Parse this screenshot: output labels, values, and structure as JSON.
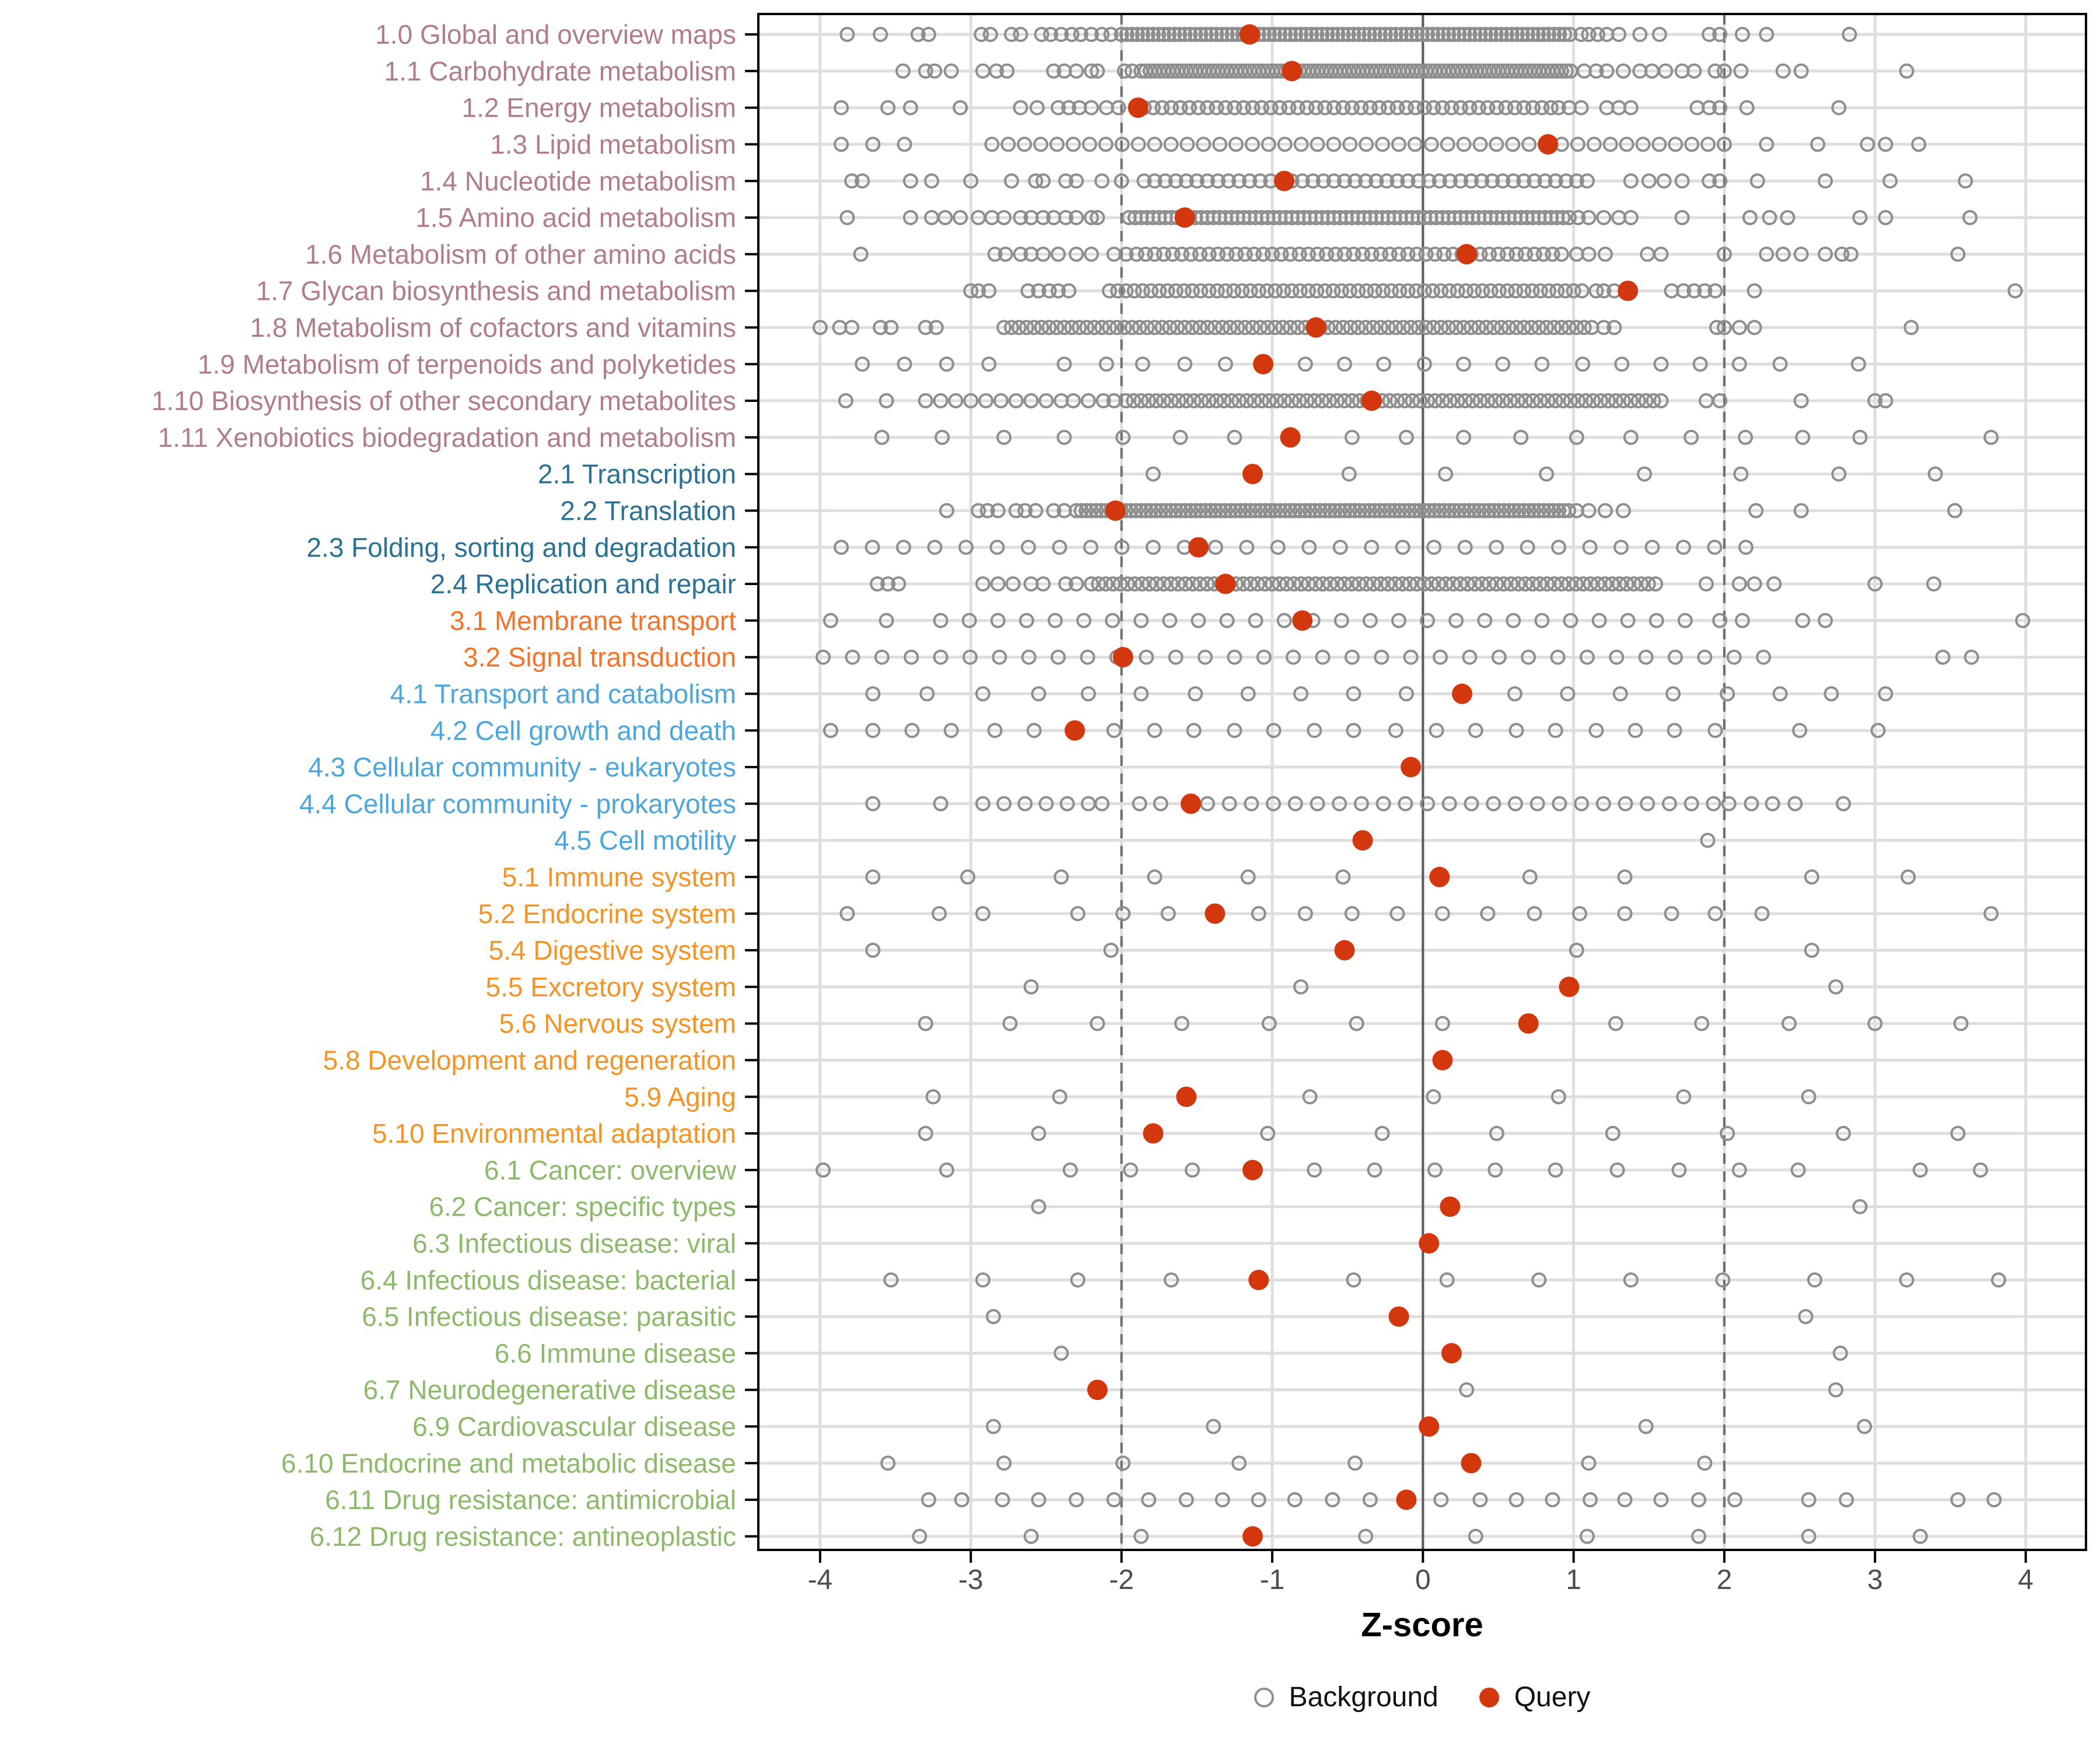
{
  "axis": {
    "xlabel": "Z-score"
  },
  "legend": {
    "background": "Background",
    "query": "Query"
  },
  "chart_data": {
    "type": "scatter",
    "title": "",
    "xlabel": "Z-score",
    "ylabel": "",
    "xlim": [
      -4.41,
      4.4
    ],
    "x_ticks": [
      -4,
      -3,
      -2,
      -1,
      0,
      1,
      2,
      3,
      4
    ],
    "grid": "major-light",
    "reference_lines": {
      "solid": [
        0
      ],
      "dashed": [
        -2,
        2
      ]
    },
    "legend_entries": [
      {
        "label": "Background",
        "marker": "open-circle"
      },
      {
        "label": "Query",
        "marker": "filled-circle"
      }
    ],
    "colors": {
      "query_fill": "#D3370E",
      "background_stroke": "#8E8E8E",
      "grid_light": "#DEDEDE",
      "ref_dashed": "#6E6E6E",
      "ref_solid": "#5C5C5C",
      "panel_border": "#000000",
      "tick_label": "#4D4D4D"
    },
    "group_colors": {
      "metabolism": "#B17D86",
      "genetic": "#2A7194",
      "environmental": "#F87128",
      "cellular": "#4DA6DB",
      "organismal": "#F59425",
      "disease": "#8CBA6A"
    },
    "rows": [
      {
        "label": "1.0 Global and overview maps",
        "group": "metabolism",
        "query": -1.15,
        "bg_points": [
          -3.82,
          -3.6,
          -3.35,
          -3.28,
          -2.93,
          -2.87,
          -2.73,
          -2.67,
          -2.53,
          -2.47,
          -2.4,
          -2.33,
          -2.27,
          -2.2,
          -2.13,
          -2.07,
          1.05,
          1.1,
          1.16,
          1.22,
          1.3,
          1.44,
          1.57,
          1.9,
          1.97,
          2.12,
          2.28,
          2.83
        ],
        "bg_ranges": [
          [
            -2.0,
            0.98,
            0.035
          ]
        ]
      },
      {
        "label": "1.1 Carbohydrate metabolism",
        "group": "metabolism",
        "query": -0.87,
        "bg_points": [
          -3.45,
          -3.3,
          -3.24,
          -3.13,
          -2.92,
          -2.83,
          -2.76,
          -2.45,
          -2.38,
          -2.3,
          -2.2,
          -2.16,
          -1.98,
          -1.93,
          1.07,
          1.15,
          1.22,
          1.33,
          1.44,
          1.52,
          1.61,
          1.72,
          1.8,
          1.94,
          2.0,
          2.11,
          2.39,
          2.51,
          3.21
        ],
        "bg_ranges": [
          [
            -1.87,
            1.0,
            0.03
          ]
        ]
      },
      {
        "label": "1.2 Energy metabolism",
        "group": "metabolism",
        "query": -1.89,
        "bg_points": [
          -3.86,
          -3.55,
          -3.4,
          -3.07,
          -2.67,
          -2.56,
          -2.42,
          -2.35,
          -2.28,
          -2.2,
          -2.1,
          -2.02,
          0.9,
          0.97,
          1.05,
          1.22,
          1.3,
          1.38,
          1.82,
          1.9,
          1.97,
          2.15,
          2.76
        ],
        "bg_ranges": [
          [
            -1.85,
            0.85,
            0.06
          ]
        ]
      },
      {
        "label": "1.3 Lipid metabolism",
        "group": "metabolism",
        "query": 0.83,
        "bg_points": [
          -3.86,
          -3.65,
          -3.44,
          2.28,
          2.62,
          2.95,
          3.07,
          3.29
        ],
        "bg_ranges": [
          [
            -2.86,
            2.0,
            0.108
          ]
        ]
      },
      {
        "label": "1.4 Nucleotide metabolism",
        "group": "metabolism",
        "query": -0.92,
        "bg_points": [
          -3.79,
          -3.72,
          -3.4,
          -3.26,
          -3.0,
          -2.73,
          -2.57,
          -2.52,
          -2.37,
          -2.3,
          -2.13,
          -2.0,
          1.38,
          1.5,
          1.6,
          1.72,
          1.9,
          1.97,
          2.22,
          2.67,
          3.1,
          3.6
        ],
        "bg_ranges": [
          [
            -1.85,
            1.15,
            0.07
          ]
        ]
      },
      {
        "label": "1.5 Amino acid metabolism",
        "group": "metabolism",
        "query": -1.58,
        "bg_points": [
          -3.82,
          -3.4,
          -3.26,
          -3.17,
          -3.07,
          -2.95,
          -2.86,
          -2.78,
          -2.67,
          -2.6,
          -2.52,
          -2.45,
          -2.37,
          -2.3,
          -2.2,
          -2.16,
          1.03,
          1.1,
          1.2,
          1.3,
          1.38,
          1.72,
          2.17,
          2.3,
          2.42,
          2.9,
          3.07,
          3.63
        ],
        "bg_ranges": [
          [
            -1.95,
            0.97,
            0.04
          ]
        ]
      },
      {
        "label": "1.6 Metabolism of other amino acids",
        "group": "metabolism",
        "query": 0.29,
        "bg_points": [
          -3.73,
          -2.84,
          -2.77,
          -2.67,
          -2.6,
          -2.52,
          -2.42,
          -2.3,
          -2.2,
          -2.05,
          -1.97,
          1.02,
          1.1,
          1.21,
          1.49,
          1.58,
          2.0,
          2.28,
          2.39,
          2.51,
          2.67,
          2.78,
          2.84,
          3.55
        ],
        "bg_ranges": [
          [
            -1.9,
            0.95,
            0.06
          ]
        ]
      },
      {
        "label": "1.7 Glycan biosynthesis and metabolism",
        "group": "metabolism",
        "query": 1.36,
        "bg_points": [
          -3.0,
          -2.95,
          -2.88,
          -2.62,
          -2.55,
          -2.48,
          -2.42,
          -2.35,
          1.15,
          1.2,
          1.27,
          1.65,
          1.73,
          1.8,
          1.87,
          1.94,
          2.2,
          3.93
        ],
        "bg_ranges": [
          [
            -2.08,
            1.1,
            0.055
          ]
        ]
      },
      {
        "label": "1.8 Metabolism of cofactors and vitamins",
        "group": "metabolism",
        "query": -0.71,
        "bg_points": [
          -4.0,
          -3.87,
          -3.79,
          -3.6,
          -3.53,
          -3.3,
          -3.23,
          1.2,
          1.27,
          1.95,
          2.0,
          2.1,
          2.2,
          3.24
        ],
        "bg_ranges": [
          [
            -2.78,
            1.15,
            0.05
          ]
        ]
      },
      {
        "label": "1.9 Metabolism of terpenoids and polyketides",
        "group": "metabolism",
        "query": -1.06,
        "bg_points": [
          -3.72,
          -3.44,
          -3.16,
          -2.88,
          -2.38,
          -2.1,
          -1.86,
          -1.58,
          -1.31,
          -0.78,
          -0.52,
          -0.26,
          0.01,
          0.27,
          0.53,
          0.79,
          1.06,
          1.32,
          1.58,
          1.84,
          2.1,
          2.37,
          2.89
        ],
        "bg_ranges": []
      },
      {
        "label": "1.10 Biosynthesis of other secondary metabolites",
        "group": "metabolism",
        "query": -0.34,
        "bg_points": [
          -3.83,
          -3.56,
          -3.3,
          -3.2,
          -3.1,
          -3.0,
          -2.9,
          -2.8,
          -2.7,
          -2.6,
          -2.5,
          -2.4,
          -2.32,
          -2.22,
          -2.12,
          -2.05,
          1.88,
          1.97,
          2.51,
          3.0,
          3.07
        ],
        "bg_ranges": [
          [
            -1.97,
            1.61,
            0.05
          ]
        ]
      },
      {
        "label": "1.11 Xenobiotics biodegradation and metabolism",
        "group": "metabolism",
        "query": -0.88,
        "bg_points": [
          -3.59,
          -3.19,
          -2.78,
          -2.38,
          -1.99,
          -1.61,
          -1.25,
          -0.47,
          -0.11,
          0.27,
          0.65,
          1.02,
          1.38,
          1.78,
          2.14,
          2.52,
          2.9,
          3.77
        ],
        "bg_ranges": []
      },
      {
        "label": "2.1 Transcription",
        "group": "genetic",
        "query": -1.13,
        "bg_points": [
          -1.79,
          -0.49,
          0.15,
          0.82,
          1.47,
          2.11,
          2.76,
          3.4
        ],
        "bg_ranges": []
      },
      {
        "label": "2.2 Translation",
        "group": "genetic",
        "query": -2.04,
        "bg_points": [
          -3.16,
          -2.95,
          -2.89,
          -2.82,
          -2.7,
          -2.64,
          -2.57,
          -2.45,
          -2.38,
          1.02,
          1.1,
          1.21,
          1.33,
          2.21,
          2.51,
          3.53
        ],
        "bg_ranges": [
          [
            -2.3,
            0.97,
            0.033
          ]
        ]
      },
      {
        "label": "2.3 Folding, sorting and degradation",
        "group": "genetic",
        "query": -1.49,
        "bg_points": [],
        "bg_ranges": [
          [
            -3.86,
            2.33,
            0.207
          ]
        ]
      },
      {
        "label": "2.4 Replication and repair",
        "group": "genetic",
        "query": -1.31,
        "bg_points": [
          -3.62,
          -3.55,
          -3.48,
          -2.92,
          -2.82,
          -2.72,
          -2.6,
          -2.52,
          -2.37,
          -2.3,
          1.88,
          2.1,
          2.2,
          2.33,
          3.0,
          3.39
        ],
        "bg_ranges": [
          [
            -2.2,
            1.58,
            0.048
          ]
        ]
      },
      {
        "label": "3.1 Membrane transport",
        "group": "environmental",
        "query": -0.8,
        "bg_points": [
          -3.93,
          -3.56,
          1.97,
          2.12,
          2.52,
          2.67,
          3.98
        ],
        "bg_ranges": [
          [
            -3.2,
            1.9,
            0.19
          ]
        ]
      },
      {
        "label": "3.2 Signal transduction",
        "group": "environmental",
        "query": -1.99,
        "bg_points": [
          3.45,
          3.64
        ],
        "bg_ranges": [
          [
            -3.98,
            2.33,
            0.195
          ]
        ]
      },
      {
        "label": "4.1 Transport and catabolism",
        "group": "cellular",
        "query": 0.26,
        "bg_points": [
          -3.65,
          -3.29,
          -2.92,
          -2.55,
          -2.22,
          -1.87,
          -1.51,
          -1.16,
          -0.81,
          -0.46,
          -0.11,
          0.61,
          0.96,
          1.31,
          1.66,
          2.02,
          2.37,
          2.71,
          3.07
        ],
        "bg_ranges": []
      },
      {
        "label": "4.2 Cell growth and death",
        "group": "cellular",
        "query": -2.31,
        "bg_points": [
          -3.93,
          -3.65,
          -3.39,
          -3.13,
          -2.84,
          -2.58,
          -2.05,
          -1.78,
          -1.52,
          -1.25,
          -0.99,
          -0.72,
          -0.46,
          -0.18,
          0.09,
          0.35,
          0.62,
          0.88,
          1.15,
          1.41,
          1.67,
          1.94,
          2.5,
          3.02
        ],
        "bg_ranges": []
      },
      {
        "label": "4.3 Cellular community - eukaryotes",
        "group": "cellular",
        "query": -0.08,
        "bg_points": [],
        "bg_ranges": []
      },
      {
        "label": "4.4 Cellular community - prokaryotes",
        "group": "cellular",
        "query": -1.54,
        "bg_points": [
          -3.65,
          -3.2,
          -2.92,
          -2.78,
          -2.64,
          -2.5,
          -2.36,
          -2.22,
          -2.13,
          -1.88,
          -1.74,
          2.03,
          2.18,
          2.32,
          2.47,
          2.79
        ],
        "bg_ranges": [
          [
            -1.43,
            1.94,
            0.146
          ]
        ]
      },
      {
        "label": "4.5 Cell motility",
        "group": "cellular",
        "query": -0.4,
        "bg_points": [
          1.89
        ],
        "bg_ranges": []
      },
      {
        "label": "5.1 Immune system",
        "group": "organismal",
        "query": 0.11,
        "bg_points": [
          -3.65,
          -3.02,
          -2.4,
          -1.78,
          -1.16,
          -0.53,
          0.71,
          1.34,
          2.58,
          3.22
        ],
        "bg_ranges": []
      },
      {
        "label": "5.2 Endocrine system",
        "group": "organismal",
        "query": -1.38,
        "bg_points": [
          -3.82,
          -3.21,
          -2.92,
          -2.29,
          -1.99,
          -1.69,
          -1.09,
          -0.78,
          -0.47,
          -0.17,
          0.13,
          0.43,
          0.74,
          1.04,
          1.34,
          1.65,
          1.94,
          2.25,
          3.77
        ],
        "bg_ranges": []
      },
      {
        "label": "5.4 Digestive system",
        "group": "organismal",
        "query": -0.52,
        "bg_points": [
          -3.65,
          -2.07,
          1.02,
          2.58
        ],
        "bg_ranges": []
      },
      {
        "label": "5.5 Excretory system",
        "group": "organismal",
        "query": 0.97,
        "bg_points": [
          -2.6,
          -0.81,
          2.74
        ],
        "bg_ranges": []
      },
      {
        "label": "5.6 Nervous system",
        "group": "organismal",
        "query": 0.7,
        "bg_points": [
          -3.3,
          -2.74,
          -2.16,
          -1.6,
          -1.02,
          -0.44,
          0.13,
          1.28,
          1.85,
          2.43,
          3.0,
          3.57
        ],
        "bg_ranges": []
      },
      {
        "label": "5.8 Development and regeneration",
        "group": "organismal",
        "query": 0.13,
        "bg_points": [],
        "bg_ranges": []
      },
      {
        "label": "5.9 Aging",
        "group": "organismal",
        "query": -1.57,
        "bg_points": [
          -3.25,
          -2.41,
          -0.75,
          0.07,
          0.9,
          1.73,
          2.56
        ],
        "bg_ranges": []
      },
      {
        "label": "5.10 Environmental adaptation",
        "group": "organismal",
        "query": -1.79,
        "bg_points": [
          -3.3,
          -2.55,
          -1.03,
          -0.27,
          0.49,
          1.26,
          2.02,
          2.79,
          3.55
        ],
        "bg_ranges": []
      },
      {
        "label": "6.1 Cancer: overview",
        "group": "disease",
        "query": -1.13,
        "bg_points": [
          -3.98,
          -3.16,
          -2.34,
          -1.94,
          -1.53,
          -0.72,
          -0.32,
          0.08,
          0.48,
          0.88,
          1.29,
          1.7,
          2.1,
          2.49,
          3.3,
          3.7
        ],
        "bg_ranges": []
      },
      {
        "label": "6.2 Cancer: specific types",
        "group": "disease",
        "query": 0.18,
        "bg_points": [
          -2.55,
          2.9
        ],
        "bg_ranges": []
      },
      {
        "label": "6.3 Infectious disease: viral",
        "group": "disease",
        "query": 0.04,
        "bg_points": [],
        "bg_ranges": []
      },
      {
        "label": "6.4 Infectious disease: bacterial",
        "group": "disease",
        "query": -1.09,
        "bg_points": [
          -3.53,
          -2.92,
          -2.29,
          -1.67,
          -0.46,
          0.16,
          0.77,
          1.38,
          1.99,
          2.6,
          3.21,
          3.82
        ],
        "bg_ranges": []
      },
      {
        "label": "6.5 Infectious disease: parasitic",
        "group": "disease",
        "query": -0.16,
        "bg_points": [
          -2.85,
          2.54
        ],
        "bg_ranges": []
      },
      {
        "label": "6.6 Immune disease",
        "group": "disease",
        "query": 0.19,
        "bg_points": [
          -2.4,
          2.77
        ],
        "bg_ranges": []
      },
      {
        "label": "6.7 Neurodegenerative disease",
        "group": "disease",
        "query": -2.16,
        "bg_points": [
          0.29,
          2.74
        ],
        "bg_ranges": []
      },
      {
        "label": "6.9 Cardiovascular disease",
        "group": "disease",
        "query": 0.04,
        "bg_points": [
          -2.85,
          -1.39,
          1.48,
          2.93
        ],
        "bg_ranges": []
      },
      {
        "label": "6.10 Endocrine and metabolic disease",
        "group": "disease",
        "query": 0.32,
        "bg_points": [
          -3.55,
          -2.78,
          -1.99,
          -1.22,
          -0.45,
          1.1,
          1.87
        ],
        "bg_ranges": []
      },
      {
        "label": "6.11 Drug resistance: antimicrobial",
        "group": "disease",
        "query": -0.11,
        "bg_points": [
          -3.28,
          -3.06,
          -2.79,
          -2.55,
          -2.3,
          -2.05,
          -1.82,
          -1.57,
          -1.33,
          -1.09,
          -0.85,
          -0.6,
          -0.35,
          0.12,
          0.38,
          0.62,
          0.86,
          1.11,
          1.34,
          1.58,
          1.83,
          2.07,
          2.56,
          2.81,
          3.55,
          3.79
        ],
        "bg_ranges": []
      },
      {
        "label": "6.12 Drug resistance: antineoplastic",
        "group": "disease",
        "query": -1.13,
        "bg_points": [
          -3.34,
          -2.6,
          -1.87,
          -0.38,
          0.35,
          1.09,
          1.83,
          2.56,
          3.3
        ],
        "bg_ranges": []
      }
    ]
  }
}
